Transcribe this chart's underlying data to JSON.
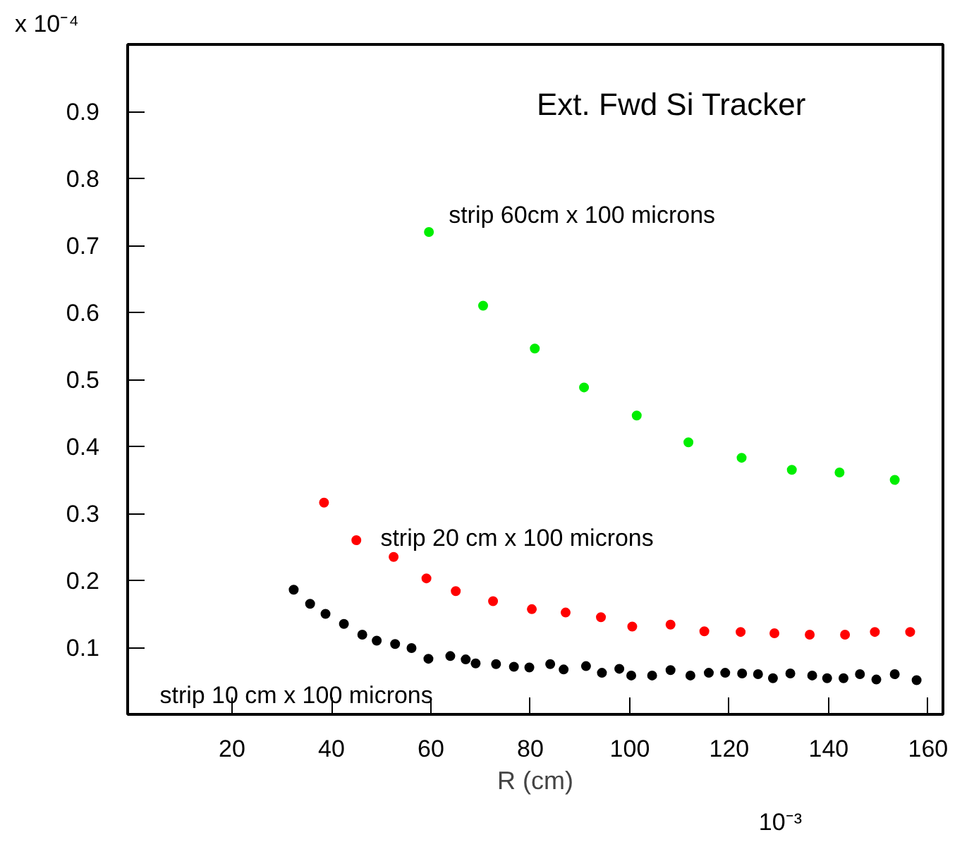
{
  "chart_data": {
    "type": "scatter",
    "title": "Ext. Fwd Si Tracker",
    "xlabel": "R (cm)",
    "annotations": [
      "x 10⁻⁴",
      "10⁻³"
    ],
    "xlim": [
      -1,
      163
    ],
    "ylim": [
      0,
      1.0
    ],
    "xticks": [
      20,
      40,
      60,
      80,
      100,
      120,
      140,
      160
    ],
    "yticks": [
      0.1,
      0.2,
      0.3,
      0.4,
      0.5,
      0.6,
      0.7,
      0.8,
      0.9
    ],
    "grid": false,
    "marker": "circle",
    "series": [
      {
        "name": "strip 60cm x 100 microns",
        "color": "#00ee00",
        "x": [
          59.6,
          70.5,
          80.9,
          90.8,
          101.4,
          111.8,
          122.5,
          132.6,
          142.2,
          153.3
        ],
        "values": [
          0.72,
          0.61,
          0.546,
          0.488,
          0.446,
          0.406,
          0.383,
          0.365,
          0.361,
          0.35
        ]
      },
      {
        "name": "strip 20 cm x 100 microns",
        "color": "#ff0000",
        "x": [
          38.5,
          45.0,
          52.5,
          59.1,
          65.0,
          72.5,
          80.3,
          87.1,
          94.2,
          100.5,
          108.2,
          115.0,
          122.3,
          129.1,
          136.2,
          143.3,
          149.3,
          156.4
        ],
        "values": [
          0.316,
          0.26,
          0.235,
          0.203,
          0.184,
          0.169,
          0.157,
          0.152,
          0.145,
          0.131,
          0.134,
          0.124,
          0.123,
          0.121,
          0.119,
          0.119,
          0.123,
          0.123
        ]
      },
      {
        "name": "strip 10 cm x 100 microns",
        "color": "#000000",
        "x": [
          32.4,
          35.7,
          38.8,
          42.5,
          46.2,
          49.1,
          52.8,
          56.1,
          59.5,
          63.9,
          67.0,
          69.0,
          73.1,
          76.7,
          79.8,
          84.0,
          86.7,
          91.2,
          94.4,
          97.9,
          100.3,
          104.5,
          108.2,
          112.2,
          115.9,
          119.2,
          122.6,
          125.8,
          128.8,
          132.3,
          136.7,
          139.7,
          143.0,
          146.3,
          149.6,
          153.3,
          157.7
        ],
        "values": [
          0.186,
          0.165,
          0.15,
          0.135,
          0.119,
          0.11,
          0.105,
          0.099,
          0.083,
          0.087,
          0.082,
          0.076,
          0.075,
          0.071,
          0.07,
          0.075,
          0.067,
          0.072,
          0.062,
          0.068,
          0.058,
          0.058,
          0.066,
          0.058,
          0.062,
          0.062,
          0.061,
          0.06,
          0.054,
          0.061,
          0.058,
          0.054,
          0.054,
          0.06,
          0.052,
          0.06,
          0.051
        ]
      }
    ]
  }
}
